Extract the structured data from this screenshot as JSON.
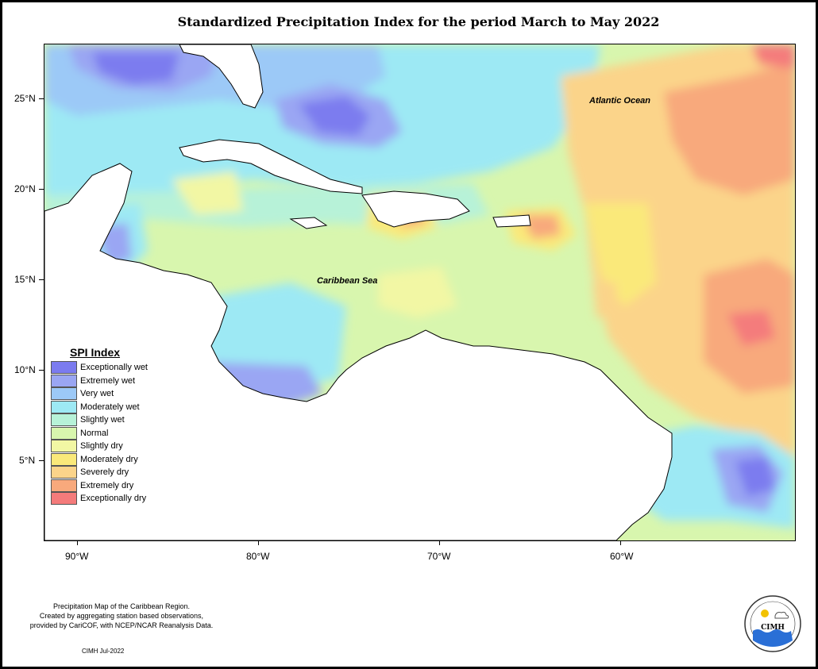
{
  "title": "Standardized Precipitation Index for the period March to May 2022",
  "map": {
    "ocean_labels": {
      "atlantic": "Atlantic Ocean",
      "caribbean": "Caribbean Sea"
    },
    "lat_ticks": [
      "25°N",
      "20°N",
      "15°N",
      "10°N",
      "5°N"
    ],
    "lon_ticks": [
      "90°W",
      "80°W",
      "70°W",
      "60°W"
    ]
  },
  "legend": {
    "title": "SPI Index",
    "items": [
      {
        "label": "Exceptionally wet",
        "color": "#7b7bef"
      },
      {
        "label": "Extremely wet",
        "color": "#9aa6f3"
      },
      {
        "label": "Very wet",
        "color": "#9cc9f7"
      },
      {
        "label": "Moderately wet",
        "color": "#9de9f4"
      },
      {
        "label": "Slightly wet",
        "color": "#b7f2d8"
      },
      {
        "label": "Normal",
        "color": "#d8f6ae"
      },
      {
        "label": "Slightly dry",
        "color": "#f2f7a4"
      },
      {
        "label": "Moderately dry",
        "color": "#fae97a"
      },
      {
        "label": "Severely dry",
        "color": "#fbd48a"
      },
      {
        "label": "Extremely dry",
        "color": "#f8a97c"
      },
      {
        "label": "Exceptionally dry",
        "color": "#f47b7b"
      }
    ]
  },
  "footer": {
    "lines": [
      "Precipitation Map of the Caribbean Region.",
      "Created by aggregating station based observations,",
      "provided by CariCOF, with NCEP/NCAR Reanalysis Data."
    ],
    "credit": "CIMH Jul-2022"
  },
  "logo": {
    "text": "CIMH"
  }
}
